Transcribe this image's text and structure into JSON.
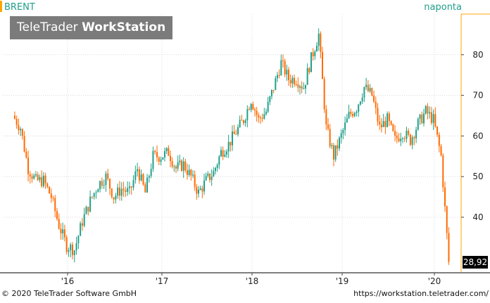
{
  "header": {
    "instrument": "BRENT",
    "mode": "naponta"
  },
  "watermark": {
    "brand": "TeleTrader",
    "product": "WorkStation"
  },
  "footer": {
    "copyright": "© 2020 TeleTrader Software GmbH",
    "url": "https://workstation.teletrader.com/"
  },
  "colors": {
    "up": "#20a08a",
    "down": "#ff6a00",
    "grid": "#d8d8d8",
    "accent": "#ffa500",
    "price_box": "#000000"
  },
  "chart_data": {
    "type": "candlestick",
    "title": "BRENT",
    "x_tick_labels": [
      "'16",
      "'17",
      "'18",
      "'19",
      "'20"
    ],
    "y_ticks": [
      40,
      50,
      60,
      70,
      80
    ],
    "ylim": [
      26.5,
      90
    ],
    "grid": true,
    "last_price_label": "28,92",
    "series": [
      {
        "name": "BRENT",
        "x": [
          "2015-06",
          "2015-07",
          "2015-08",
          "2015-09",
          "2015-10",
          "2015-11",
          "2015-12",
          "2016-01",
          "2016-02",
          "2016-03",
          "2016-04",
          "2016-05",
          "2016-06",
          "2016-07",
          "2016-08",
          "2016-09",
          "2016-10",
          "2016-11",
          "2016-12",
          "2017-01",
          "2017-02",
          "2017-03",
          "2017-04",
          "2017-05",
          "2017-06",
          "2017-07",
          "2017-08",
          "2017-09",
          "2017-10",
          "2017-11",
          "2017-12",
          "2018-01",
          "2018-02",
          "2018-03",
          "2018-04",
          "2018-05",
          "2018-06",
          "2018-07",
          "2018-08",
          "2018-09",
          "2018-10",
          "2018-11",
          "2018-12",
          "2019-01",
          "2019-02",
          "2019-03",
          "2019-04",
          "2019-05",
          "2019-06",
          "2019-07",
          "2019-08",
          "2019-09",
          "2019-10",
          "2019-11",
          "2019-12",
          "2020-01",
          "2020-02",
          "2020-03"
        ],
        "y": [
          65,
          62,
          52,
          49,
          49,
          45,
          38,
          33,
          32,
          39,
          44,
          48,
          50,
          45,
          47,
          46,
          52,
          46,
          55,
          55,
          56,
          52,
          53,
          50,
          46,
          49,
          51,
          56,
          58,
          61,
          64,
          69,
          64,
          66,
          72,
          78,
          74,
          74,
          72,
          79,
          85,
          62,
          55,
          60,
          65,
          67,
          72,
          70,
          62,
          64,
          59,
          61,
          59,
          63,
          66,
          64,
          55,
          29
        ]
      }
    ]
  }
}
